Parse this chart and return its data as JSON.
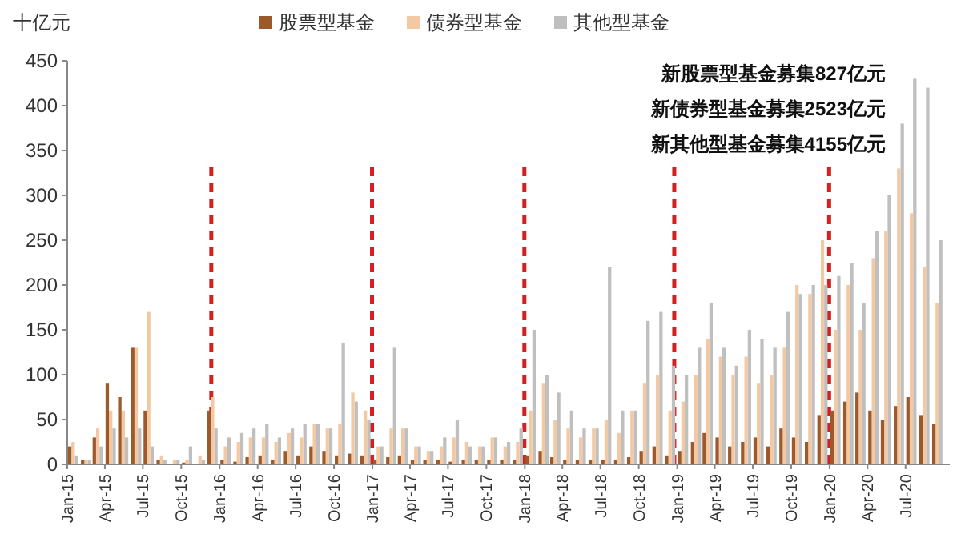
{
  "chart_data": {
    "type": "bar",
    "ylabel": "十亿元",
    "legend": "top",
    "x": [
      "2015-01-15",
      "2015-02-15",
      "2015-03-15",
      "2015-04-15",
      "2015-05-15",
      "2015-06-15",
      "2015-07-15",
      "2015-08-15",
      "2015-09-15",
      "2015-10-15",
      "2015-11-15",
      "2015-12-15",
      "2016-01-15",
      "2016-02-15",
      "2016-03-15",
      "2016-04-15",
      "2016-05-15",
      "2016-06-15",
      "2016-07-15",
      "2016-08-15",
      "2016-09-15",
      "2016-10-15",
      "2016-11-15",
      "2016-12-15",
      "2017-01-15",
      "2017-02-15",
      "2017-03-15",
      "2017-04-15",
      "2017-05-15",
      "2017-06-15",
      "2017-07-15",
      "2017-08-15",
      "2017-09-15",
      "2017-10-15",
      "2017-11-15",
      "2017-12-15",
      "2018-01-15",
      "2018-02-15",
      "2018-03-15",
      "2018-04-15",
      "2018-05-15",
      "2018-06-15",
      "2018-07-15",
      "2018-08-15",
      "2018-09-15",
      "2018-10-15",
      "2018-11-15",
      "2018-12-15",
      "2019-01-15",
      "2019-02-15",
      "2019-03-15",
      "2019-04-15",
      "2019-05-15",
      "2019-06-15",
      "2019-07-15",
      "2019-08-15",
      "2019-09-15",
      "2019-10-15",
      "2019-11-15",
      "2019-12-15",
      "2020-01-15",
      "2020-02-15",
      "2020-03-15",
      "2020-04-15",
      "2020-05-15",
      "2020-06-15",
      "2020-07-15",
      "2020-08-15",
      "2020-09-15"
    ],
    "series": [
      {
        "name": "股票型基金",
        "color": "#9c5a2c",
        "values": [
          20,
          5,
          30,
          90,
          75,
          130,
          60,
          5,
          0,
          2,
          0,
          60,
          5,
          3,
          8,
          10,
          5,
          15,
          10,
          20,
          15,
          10,
          12,
          10,
          5,
          8,
          10,
          5,
          5,
          5,
          3,
          5,
          5,
          5,
          5,
          5,
          10,
          15,
          8,
          5,
          5,
          5,
          5,
          5,
          8,
          15,
          20,
          10,
          15,
          25,
          35,
          30,
          20,
          25,
          30,
          20,
          40,
          30,
          25,
          55,
          60,
          70,
          80,
          60,
          50,
          65,
          75,
          55,
          45
        ]
      },
      {
        "name": "债券型基金",
        "color": "#f3c9a3",
        "values": [
          25,
          5,
          40,
          60,
          60,
          130,
          170,
          10,
          5,
          5,
          10,
          75,
          20,
          25,
          30,
          30,
          25,
          35,
          30,
          45,
          40,
          45,
          80,
          60,
          20,
          40,
          40,
          20,
          15,
          20,
          30,
          25,
          20,
          30,
          20,
          25,
          60,
          90,
          50,
          40,
          30,
          40,
          50,
          35,
          60,
          90,
          100,
          60,
          70,
          100,
          140,
          120,
          100,
          120,
          90,
          100,
          130,
          200,
          190,
          250,
          150,
          200,
          150,
          230,
          260,
          330,
          280,
          220,
          180
        ]
      },
      {
        "name": "其他型基金",
        "color": "#bfbfbf",
        "values": [
          10,
          5,
          20,
          40,
          30,
          40,
          20,
          5,
          5,
          20,
          5,
          40,
          30,
          35,
          40,
          45,
          30,
          40,
          45,
          45,
          40,
          135,
          70,
          50,
          20,
          130,
          40,
          20,
          15,
          30,
          50,
          20,
          20,
          30,
          25,
          40,
          150,
          100,
          80,
          60,
          40,
          40,
          220,
          60,
          60,
          160,
          170,
          110,
          100,
          130,
          180,
          130,
          110,
          150,
          140,
          130,
          170,
          190,
          200,
          200,
          210,
          225,
          180,
          260,
          300,
          380,
          430,
          420,
          250
        ]
      }
    ],
    "xlim": [
      "2015-01-01",
      "2020-10-15"
    ],
    "xticks": [
      {
        "value": "2015-01-01",
        "label": "Jan-15"
      },
      {
        "value": "2015-04-01",
        "label": "Apr-15"
      },
      {
        "value": "2015-07-01",
        "label": "Jul-15"
      },
      {
        "value": "2015-10-01",
        "label": "Oct-15"
      },
      {
        "value": "2016-01-01",
        "label": "Jan-16"
      },
      {
        "value": "2016-04-01",
        "label": "Apr-16"
      },
      {
        "value": "2016-07-01",
        "label": "Jul-16"
      },
      {
        "value": "2016-10-01",
        "label": "Oct-16"
      },
      {
        "value": "2017-01-01",
        "label": "Jan-17"
      },
      {
        "value": "2017-04-01",
        "label": "Apr-17"
      },
      {
        "value": "2017-07-01",
        "label": "Jul-17"
      },
      {
        "value": "2017-10-01",
        "label": "Oct-17"
      },
      {
        "value": "2018-01-01",
        "label": "Jan-18"
      },
      {
        "value": "2018-04-01",
        "label": "Apr-18"
      },
      {
        "value": "2018-07-01",
        "label": "Jul-18"
      },
      {
        "value": "2018-10-01",
        "label": "Oct-18"
      },
      {
        "value": "2019-01-01",
        "label": "Jan-19"
      },
      {
        "value": "2019-04-01",
        "label": "Apr-19"
      },
      {
        "value": "2019-07-01",
        "label": "Jul-19"
      },
      {
        "value": "2019-10-01",
        "label": "Oct-19"
      },
      {
        "value": "2020-01-01",
        "label": "Jan-20"
      },
      {
        "value": "2020-04-01",
        "label": "Apr-20"
      },
      {
        "value": "2020-07-01",
        "label": "Jul-20"
      }
    ],
    "ylim": [
      0,
      450
    ],
    "yticks": [
      0,
      50,
      100,
      150,
      200,
      250,
      300,
      350,
      400,
      450
    ],
    "ref_lines": [
      {
        "axis": "x",
        "value": "2015-12-12",
        "color": "#d42020",
        "line_style": "dashed"
      },
      {
        "axis": "x",
        "value": "2016-12-31",
        "color": "#d42020",
        "line_style": "dashed"
      },
      {
        "axis": "x",
        "value": "2017-12-31",
        "color": "#d42020",
        "line_style": "dashed"
      },
      {
        "axis": "x",
        "value": "2018-12-25",
        "color": "#d42020",
        "line_style": "dashed"
      },
      {
        "axis": "x",
        "value": "2019-12-31",
        "color": "#d42020",
        "line_style": "dashed"
      }
    ],
    "annotations": [
      "新股票型基金募集827亿元",
      "新债券型基金募集2523亿元",
      "新其他型基金募集4155亿元"
    ]
  }
}
